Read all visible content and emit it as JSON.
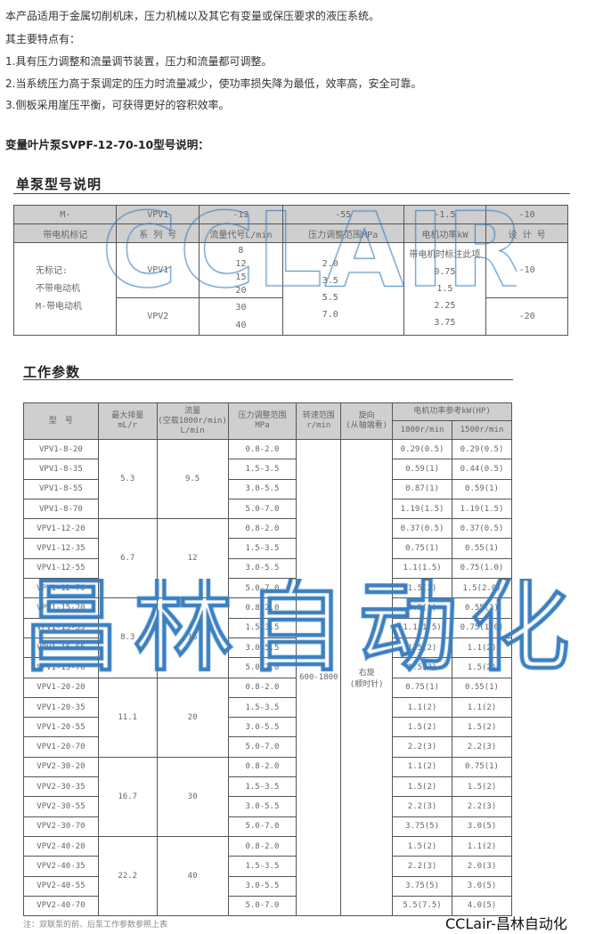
{
  "intro": {
    "lines": [
      "本产品适用于金属切削机床，压力机械以及其它有变量或保压要求的液压系统。",
      "其主要特点有：",
      "1.具有压力调整和流量调节装置，压力和流量都可调整。",
      "2.当系统压力高于泵调定的压力时流量减少，使功率损失降为最低，效率高，安全可靠。",
      "3.侧板采用崖压平衡，可获得更好的容积效率。"
    ],
    "model_heading": "变量叶片泵SVPF-12-70-10型号说明："
  },
  "single_pump": {
    "title": "单泵型号说明",
    "codes": [
      "M-",
      "VPV1",
      "-12",
      "-55",
      "-1.5",
      "-10"
    ],
    "labels": [
      "带电机标记",
      "系 列 号",
      "流量代号L/min",
      "压力调整范围MPa",
      "电机功率kW",
      "设 计 号"
    ],
    "motor_note": [
      "无标记:",
      "不带电动机",
      "M-带电动机"
    ],
    "series": [
      "VPV1",
      "VPV2"
    ],
    "flow_vpv1": [
      "8",
      "12",
      "15",
      "20"
    ],
    "flow_vpv2": [
      "30",
      "40"
    ],
    "pressure": [
      "2.0",
      "3.5",
      "5.5",
      "7.0"
    ],
    "power_note": "带电机时标注此项",
    "power": [
      "0.75",
      "1.5",
      "2.25",
      "3.75"
    ],
    "design": [
      "-10",
      "-20"
    ]
  },
  "params": {
    "title": "工作参数",
    "headers": {
      "model": "型　号",
      "displacement": [
        "最大排量",
        "mL/r"
      ],
      "flow": [
        "流量",
        "(空载1800r/min)",
        "L/min"
      ],
      "pressure": [
        "压力调整范围",
        "MPa"
      ],
      "speed": [
        "转速范围",
        "r/min"
      ],
      "rotation": [
        "旋向",
        "(从轴端看)"
      ],
      "power": "电机功率参考kW(HP)",
      "power_1800": "1800r/min",
      "power_1500": "1500r/min"
    },
    "speed_value": "600-1800",
    "rotation_value": [
      "右旋",
      "(顺时针)"
    ],
    "groups": [
      {
        "displacement": "5.3",
        "flow": "9.5",
        "rows": [
          [
            "VPV1-8-20",
            "0.8-2.0",
            "0.29(0.5)",
            "0.29(0.5)"
          ],
          [
            "VPV1-8-35",
            "1.5-3.5",
            "0.59(1)",
            "0.44(0.5)"
          ],
          [
            "VPV1-8-55",
            "3.0-5.5",
            "0.87(1)",
            "0.59(1)"
          ],
          [
            "VPV1-8-70",
            "5.0-7.0",
            "1.19(1.5)",
            "1.19(1.5)"
          ]
        ]
      },
      {
        "displacement": "6.7",
        "flow": "12",
        "rows": [
          [
            "VPV1-12-20",
            "0.8-2.0",
            "0.37(0.5)",
            "0.37(0.5)"
          ],
          [
            "VPV1-12-35",
            "1.5-3.5",
            "0.75(1)",
            "0.55(1)"
          ],
          [
            "VPV1-12-55",
            "3.0-5.5",
            "1.1(1.5)",
            "0.75(1.0)"
          ],
          [
            "VPV1-12-70",
            "5.0-7.0",
            "1.5(2)",
            "1.5(2.0)"
          ]
        ]
      },
      {
        "displacement": "8.3",
        "flow": "15",
        "rows": [
          [
            "VPV1-15-20",
            "0.8-2.0",
            "0.5(1)",
            "0.55(1)"
          ],
          [
            "VPV1-15-35",
            "1.5-3.5",
            "1.1(1.5)",
            "0.75(1.0)"
          ],
          [
            "VPV1-15-55",
            "3.0-5.5",
            "1.5(2)",
            "1.1(2)"
          ],
          [
            "VPV1-15-70",
            "5.0-7.0",
            "1.5(2)",
            "1.5(2)"
          ]
        ]
      },
      {
        "displacement": "11.1",
        "flow": "20",
        "rows": [
          [
            "VPV1-20-20",
            "0.8-2.0",
            "0.75(1)",
            "0.55(1)"
          ],
          [
            "VPV1-20-35",
            "1.5-3.5",
            "1.1(2)",
            "1.1(2)"
          ],
          [
            "VPV1-20-55",
            "3.0-5.5",
            "1.5(2)",
            "1.5(2)"
          ],
          [
            "VPV1-20-70",
            "5.0-7.0",
            "2.2(3)",
            "2.2(3)"
          ]
        ]
      },
      {
        "displacement": "16.7",
        "flow": "30",
        "rows": [
          [
            "VPV2-30-20",
            "0.8-2.0",
            "1.1(2)",
            "0.75(1)"
          ],
          [
            "VPV2-30-35",
            "1.5-3.5",
            "1.5(2)",
            "1.5(2)"
          ],
          [
            "VPV2-30-55",
            "3.0-5.5",
            "2.2(3)",
            "2.2(3)"
          ],
          [
            "VPV2-30-70",
            "5.0-7.0",
            "3.75(5)",
            "3.0(5)"
          ]
        ]
      },
      {
        "displacement": "22.2",
        "flow": "40",
        "rows": [
          [
            "VPV2-40-20",
            "0.8-2.0",
            "1.5(2)",
            "1.1(2)"
          ],
          [
            "VPV2-40-35",
            "1.5-3.5",
            "2.2(3)",
            "2.0(3)"
          ],
          [
            "VPV2-40-55",
            "3.0-5.5",
            "3.75(5)",
            "3.0(5)"
          ],
          [
            "VPV2-40-70",
            "5.0-7.0",
            "5.5(7.5)",
            "4.0(5)"
          ]
        ]
      }
    ],
    "note": "注：双联泵的前、后泵工作参数参照上表"
  },
  "watermarks": {
    "latin": "CCLAIR",
    "chinese": "昌林自动化"
  },
  "brand": "CCLair-昌林自动化",
  "colors": {
    "header_bg": "#cfcfcf",
    "watermark": "#3a7fc0",
    "border": "#555555"
  }
}
